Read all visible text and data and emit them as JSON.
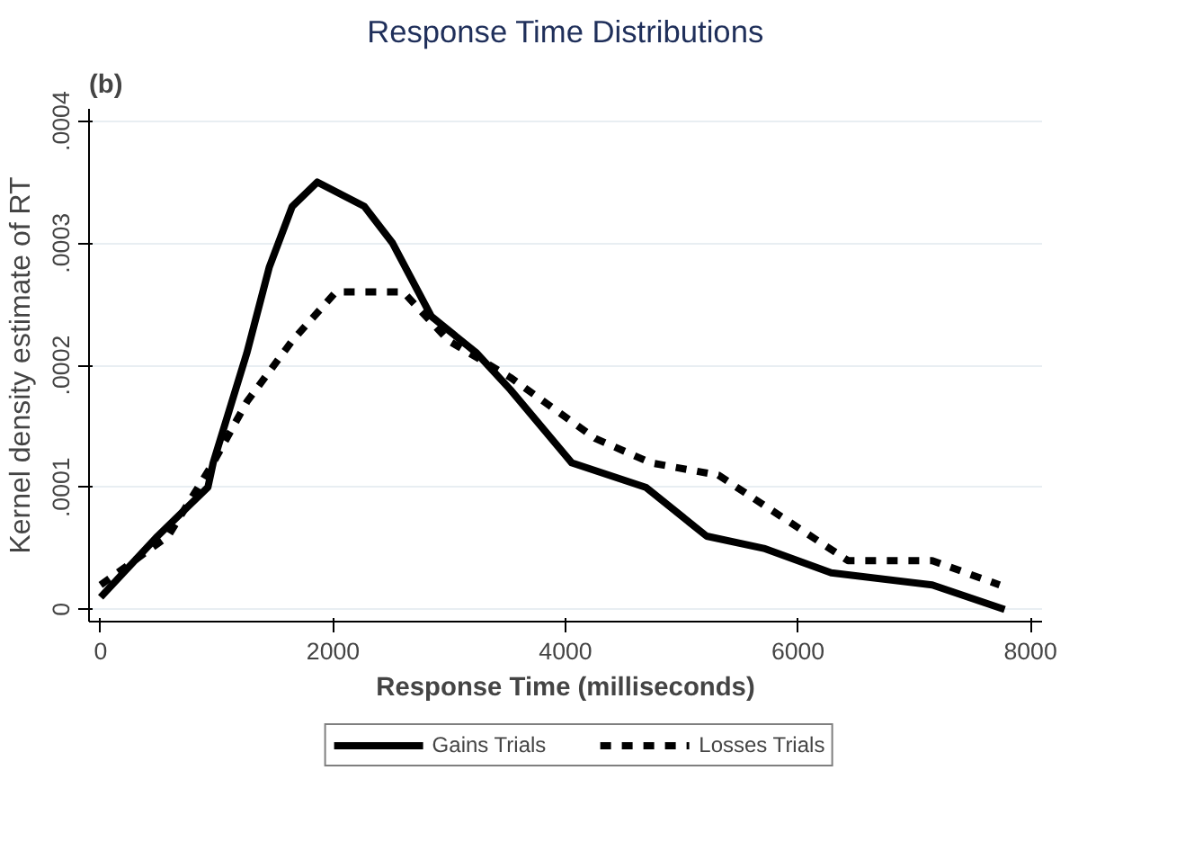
{
  "chart_data": {
    "type": "line",
    "title": "Response Time Distributions",
    "xlabel": "Response Time (milliseconds)",
    "ylabel": "Kernel density estimate of RT",
    "annotations": [
      "(b)"
    ],
    "xlim": [
      -100,
      8100
    ],
    "ylim": [
      -1e-05,
      0.00041
    ],
    "xticks": [
      0,
      2000,
      4000,
      6000,
      8000
    ],
    "yticks": [
      {
        "value": 0,
        "label": "0"
      },
      {
        "value": 0.0001,
        "label": ".0001"
      },
      {
        "value": 0.0002,
        "label": ".0002"
      },
      {
        "value": 0.0003,
        "label": ".0003"
      },
      {
        "value": 0.0004,
        "label": ".0004"
      }
    ],
    "grid": "y",
    "legend": "bottom",
    "marker": "none",
    "series": [
      {
        "name": "Gains Trials",
        "color": "#000000",
        "line_style": "solid",
        "x": [
          0,
          490,
          923,
          968,
          1258,
          1450,
          1648,
          1865,
          2270,
          2512,
          2845,
          3235,
          3525,
          4054,
          4690,
          5214,
          5706,
          6286,
          7155,
          7778
        ],
        "values": [
          1e-05,
          6e-05,
          0.0001,
          0.00012,
          0.00021,
          0.00028,
          0.00033,
          0.00035,
          0.00033,
          0.0003,
          0.00024,
          0.00021,
          0.00018,
          0.00012,
          0.0001,
          6e-05,
          5e-05,
          3e-05,
          2e-05,
          0.0
        ]
      },
      {
        "name": "Losses Trials",
        "color": "#000000",
        "line_style": "dashed",
        "x": [
          0,
          580,
          968,
          1258,
          1648,
          2024,
          2314,
          2604,
          2995,
          3525,
          4256,
          4735,
          5315,
          5793,
          6430,
          7155,
          7735
        ],
        "values": [
          2e-05,
          6e-05,
          0.00012,
          0.00017,
          0.00022,
          0.00026,
          0.00026,
          0.00026,
          0.00022,
          0.00019,
          0.00014,
          0.00012,
          0.00011,
          8e-05,
          4e-05,
          4e-05,
          2e-05
        ]
      }
    ]
  }
}
